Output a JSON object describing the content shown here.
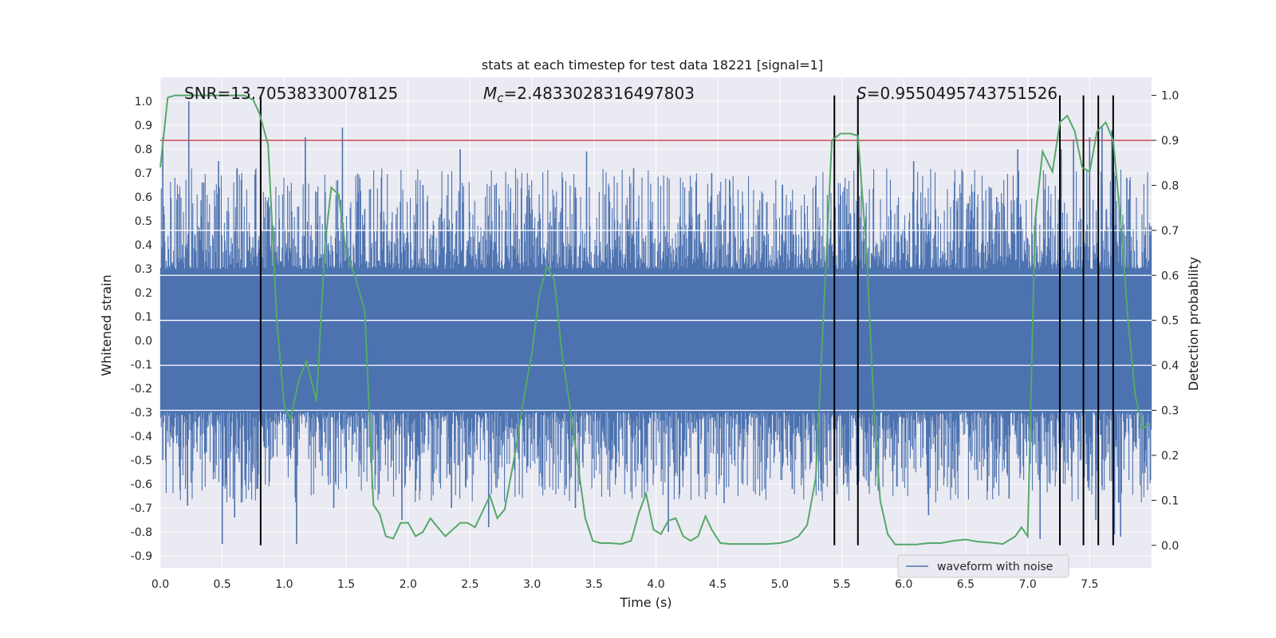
{
  "chart_data": {
    "type": "line",
    "title": "stats at each timestep for test data 18221 [signal=1]",
    "xlabel": "Time (s)",
    "ylabel_left": "Whitened strain",
    "ylabel_right": "Detection probability",
    "xlim": [
      0.0,
      8.0
    ],
    "ylim_left": [
      -0.95,
      1.1
    ],
    "ylim_right": [
      -0.05,
      1.04
    ],
    "x_ticks": [
      "0.0",
      "0.5",
      "1.0",
      "1.5",
      "2.0",
      "2.5",
      "3.0",
      "3.5",
      "4.0",
      "4.5",
      "5.0",
      "5.5",
      "6.0",
      "6.5",
      "7.0",
      "7.5"
    ],
    "y_left_ticks": [
      "1.0",
      "0.9",
      "0.8",
      "0.7",
      "0.6",
      "0.5",
      "0.4",
      "0.3",
      "0.2",
      "0.1",
      "0.0",
      "-0.1",
      "-0.2",
      "-0.3",
      "-0.4",
      "-0.5",
      "-0.6",
      "-0.7",
      "-0.8",
      "-0.9"
    ],
    "y_right_ticks": [
      "1.0",
      "0.9",
      "0.8",
      "0.7",
      "0.6",
      "0.5",
      "0.4",
      "0.3",
      "0.2",
      "0.1",
      "0.0"
    ],
    "grid": true,
    "legend": {
      "position": "lower-right",
      "entries": [
        "waveform with noise"
      ]
    },
    "annotations": {
      "snr": "SNR=13.70538330078125",
      "mc_label": "M",
      "mc_sub": "c",
      "mc_value": "=2.4833028316497803",
      "s_label": "S",
      "s_value": "=0.9550495743751526"
    },
    "colors": {
      "waveform": "#4c72b0",
      "probability": "#55a868",
      "threshold": "#c44e52",
      "markers": "#000000",
      "axes_bg": "#eaeaf2",
      "grid": "#ffffff"
    },
    "threshold_probability": 0.9,
    "marker_times": [
      0.81,
      5.44,
      5.63,
      7.26,
      7.45,
      7.57,
      7.69
    ],
    "waveform": {
      "name": "waveform with noise",
      "dense_band": [
        -0.3,
        0.3
      ],
      "peaks": [
        {
          "x": 0.02,
          "y": 0.85
        },
        {
          "x": 0.23,
          "y": 1.0
        },
        {
          "x": 0.35,
          "y": 0.66
        },
        {
          "x": 0.47,
          "y": 0.75
        },
        {
          "x": 0.62,
          "y": 0.72
        },
        {
          "x": 0.88,
          "y": 0.55
        },
        {
          "x": 1.17,
          "y": 0.85
        },
        {
          "x": 1.47,
          "y": 0.89
        },
        {
          "x": 1.65,
          "y": 0.55
        },
        {
          "x": 2.12,
          "y": 0.65
        },
        {
          "x": 2.42,
          "y": 0.8
        },
        {
          "x": 2.7,
          "y": 0.65
        },
        {
          "x": 3.35,
          "y": 0.64
        },
        {
          "x": 3.44,
          "y": 0.79
        },
        {
          "x": 3.82,
          "y": 0.72
        },
        {
          "x": 4.45,
          "y": 0.7
        },
        {
          "x": 4.6,
          "y": 0.6
        },
        {
          "x": 5.02,
          "y": 0.65
        },
        {
          "x": 6.08,
          "y": 0.75
        },
        {
          "x": 6.75,
          "y": 0.6
        },
        {
          "x": 6.92,
          "y": 0.8
        },
        {
          "x": 7.27,
          "y": 0.8
        },
        {
          "x": 7.37,
          "y": 0.84
        },
        {
          "x": 7.5,
          "y": 0.85
        },
        {
          "x": 7.6,
          "y": 0.9
        },
        {
          "x": 7.68,
          "y": 0.88
        },
        {
          "x": 7.8,
          "y": 0.68
        }
      ],
      "troughs": [
        {
          "x": 0.02,
          "y": -0.5
        },
        {
          "x": 0.22,
          "y": -0.69
        },
        {
          "x": 0.5,
          "y": -0.85
        },
        {
          "x": 0.6,
          "y": -0.74
        },
        {
          "x": 0.78,
          "y": -0.62
        },
        {
          "x": 1.1,
          "y": -0.85
        },
        {
          "x": 1.4,
          "y": -0.7
        },
        {
          "x": 1.95,
          "y": -0.75
        },
        {
          "x": 2.35,
          "y": -0.7
        },
        {
          "x": 2.65,
          "y": -0.78
        },
        {
          "x": 3.35,
          "y": -0.7
        },
        {
          "x": 4.1,
          "y": -0.8
        },
        {
          "x": 4.55,
          "y": -0.68
        },
        {
          "x": 5.1,
          "y": -0.62
        },
        {
          "x": 6.2,
          "y": -0.73
        },
        {
          "x": 6.85,
          "y": -0.66
        },
        {
          "x": 7.1,
          "y": -0.83
        },
        {
          "x": 7.55,
          "y": -0.75
        },
        {
          "x": 7.7,
          "y": -0.81
        },
        {
          "x": 7.75,
          "y": -0.82
        }
      ]
    },
    "probability": {
      "x": [
        0.0,
        0.06,
        0.12,
        0.2,
        0.3,
        0.4,
        0.5,
        0.6,
        0.68,
        0.75,
        0.8,
        0.87,
        0.94,
        1.0,
        1.05,
        1.12,
        1.18,
        1.26,
        1.33,
        1.38,
        1.44,
        1.5,
        1.57,
        1.65,
        1.72,
        1.77,
        1.82,
        1.88,
        1.94,
        2.0,
        2.06,
        2.12,
        2.18,
        2.24,
        2.3,
        2.36,
        2.42,
        2.48,
        2.54,
        2.6,
        2.66,
        2.72,
        2.78,
        2.86,
        2.93,
        3.0,
        3.06,
        3.12,
        3.18,
        3.24,
        3.3,
        3.36,
        3.43,
        3.49,
        3.55,
        3.63,
        3.72,
        3.8,
        3.86,
        3.92,
        3.98,
        4.04,
        4.1,
        4.16,
        4.22,
        4.28,
        4.34,
        4.4,
        4.45,
        4.52,
        4.6,
        4.7,
        4.8,
        4.9,
        5.0,
        5.08,
        5.15,
        5.22,
        5.29,
        5.35,
        5.42,
        5.49,
        5.57,
        5.63,
        5.7,
        5.76,
        5.81,
        5.87,
        5.93,
        6.0,
        6.1,
        6.2,
        6.3,
        6.4,
        6.5,
        6.6,
        6.7,
        6.8,
        6.9,
        6.95,
        7.0,
        7.06,
        7.12,
        7.2,
        7.26,
        7.32,
        7.38,
        7.44,
        7.5,
        7.56,
        7.63,
        7.69,
        7.75,
        7.81,
        7.87,
        7.93,
        7.99
      ],
      "y": [
        0.84,
        0.995,
        1.0,
        1.0,
        1.0,
        1.0,
        1.0,
        1.0,
        1.0,
        0.99,
        0.96,
        0.89,
        0.5,
        0.31,
        0.28,
        0.37,
        0.41,
        0.32,
        0.67,
        0.795,
        0.78,
        0.65,
        0.6,
        0.52,
        0.09,
        0.07,
        0.02,
        0.015,
        0.05,
        0.05,
        0.02,
        0.03,
        0.06,
        0.04,
        0.02,
        0.035,
        0.05,
        0.05,
        0.04,
        0.075,
        0.11,
        0.06,
        0.08,
        0.2,
        0.32,
        0.43,
        0.56,
        0.62,
        0.59,
        0.43,
        0.32,
        0.2,
        0.06,
        0.01,
        0.005,
        0.005,
        0.003,
        0.01,
        0.07,
        0.115,
        0.035,
        0.025,
        0.055,
        0.06,
        0.02,
        0.01,
        0.02,
        0.065,
        0.035,
        0.005,
        0.003,
        0.003,
        0.003,
        0.003,
        0.005,
        0.01,
        0.02,
        0.045,
        0.15,
        0.5,
        0.9,
        0.915,
        0.915,
        0.91,
        0.65,
        0.3,
        0.1,
        0.025,
        0.002,
        0.002,
        0.002,
        0.005,
        0.005,
        0.01,
        0.013,
        0.008,
        0.006,
        0.003,
        0.02,
        0.04,
        0.02,
        0.72,
        0.875,
        0.83,
        0.94,
        0.955,
        0.92,
        0.84,
        0.83,
        0.92,
        0.94,
        0.9,
        0.72,
        0.5,
        0.33,
        0.26,
        0.27
      ]
    }
  }
}
